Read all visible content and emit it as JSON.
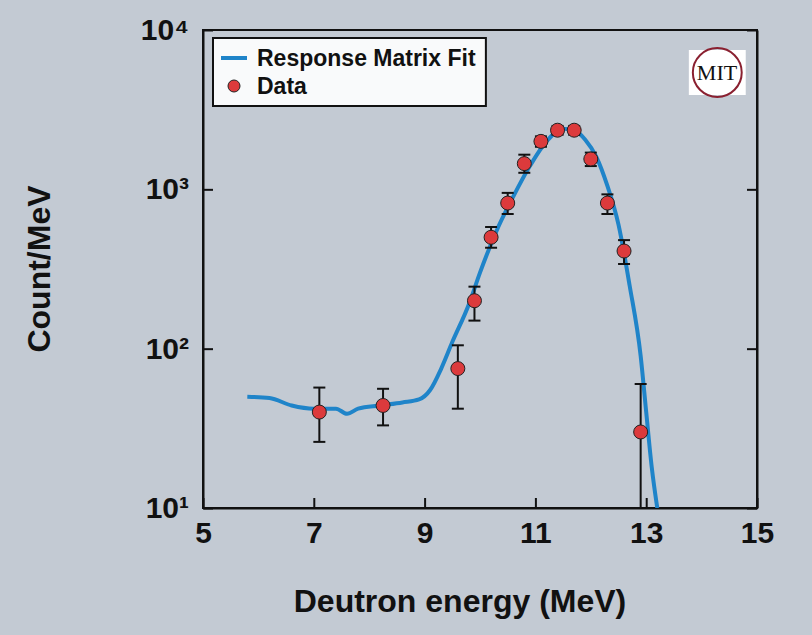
{
  "chart_data": {
    "type": "line",
    "x_label": "Deutron energy (MeV)",
    "y_label": "Count/MeV",
    "annotations": [
      "MIT"
    ],
    "log": "y",
    "legend": "upper left",
    "xlim": [
      5,
      15
    ],
    "xticks": [
      5,
      7,
      9,
      11,
      13,
      15
    ],
    "ylim": [
      10,
      10000
    ],
    "yticks": [
      {
        "value": 10,
        "label": "10¹"
      },
      {
        "value": 100,
        "label": "10²"
      },
      {
        "value": 1000,
        "label": "10³"
      },
      {
        "value": 10000,
        "label": "10⁴"
      }
    ],
    "series": [
      {
        "name": "Response Matrix Fit",
        "type": "line",
        "color": "#1f84c9",
        "line_style": "solid",
        "x": [
          5.8,
          6.2,
          6.6,
          7.0,
          7.4,
          7.6,
          7.8,
          8.2,
          8.6,
          8.9,
          9.1,
          9.3,
          9.5,
          9.8,
          10.0,
          10.3,
          10.6,
          10.9,
          11.2,
          11.5,
          11.7,
          11.9,
          12.1,
          12.3,
          12.5,
          12.7,
          12.9,
          13.0,
          13.1,
          13.2
        ],
        "values": [
          50,
          49,
          44,
          42,
          42,
          39,
          42,
          44,
          46,
          48,
          55,
          75,
          110,
          190,
          300,
          550,
          900,
          1400,
          2000,
          2400,
          2350,
          2050,
          1600,
          1050,
          600,
          250,
          90,
          40,
          18,
          10
        ]
      },
      {
        "name": "Data",
        "type": "scatter",
        "color": "#dc3a3c",
        "marker": "circle",
        "x": [
          7.1,
          8.25,
          9.6,
          9.9,
          10.2,
          10.5,
          10.8,
          11.1,
          11.4,
          11.7,
          12.0,
          12.3,
          12.6,
          12.9
        ],
        "values": [
          40,
          44,
          75,
          200,
          500,
          820,
          1450,
          2000,
          2350,
          2350,
          1550,
          820,
          410,
          30
        ],
        "error_minus": [
          14,
          11,
          33,
          50,
          70,
          120,
          180,
          150,
          150,
          150,
          150,
          120,
          70,
          20
        ],
        "error_plus": [
          17,
          12,
          30,
          45,
          80,
          130,
          200,
          150,
          150,
          150,
          150,
          110,
          70,
          30
        ]
      }
    ]
  }
}
